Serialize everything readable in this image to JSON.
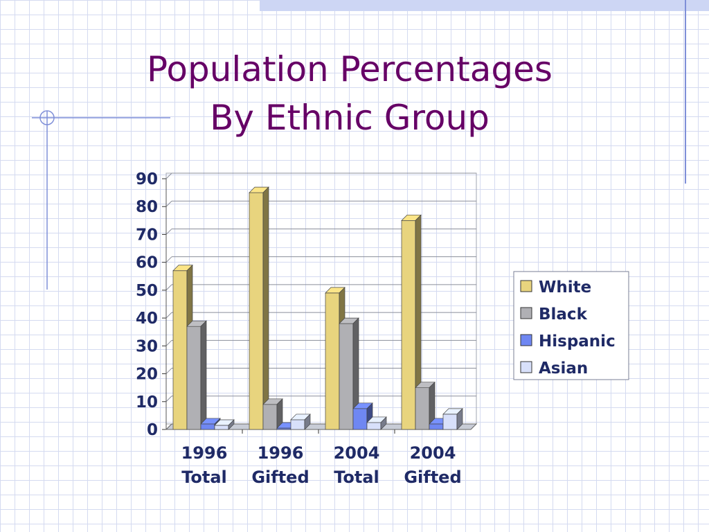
{
  "title": {
    "line1": "Population Percentages",
    "line2": "By Ethnic Group"
  },
  "colors": {
    "background": "#ffffff",
    "grid_pattern": "#d4daf0",
    "decor_line": "#7f8fd8",
    "title": "#660066",
    "axis_text": "#1f2a66"
  },
  "chart_data": {
    "type": "bar",
    "categories": [
      [
        "1996",
        "Total"
      ],
      [
        "1996",
        "Gifted"
      ],
      [
        "2004",
        "Total"
      ],
      [
        "2004",
        "Gifted"
      ]
    ],
    "series": [
      {
        "name": "White",
        "color": "#e8d47e",
        "values": [
          57,
          85,
          49,
          75
        ]
      },
      {
        "name": "Black",
        "color": "#b0b0b4",
        "values": [
          37,
          9,
          38,
          15
        ]
      },
      {
        "name": "Hispanic",
        "color": "#6f87f2",
        "values": [
          2,
          0.5,
          7.5,
          2
        ]
      },
      {
        "name": "Asian",
        "color": "#d8e0fa",
        "values": [
          1.5,
          3.5,
          2.5,
          5.5
        ]
      }
    ],
    "ylim": [
      0,
      90
    ],
    "yticks": [
      0,
      10,
      20,
      30,
      40,
      50,
      60,
      70,
      80,
      90
    ],
    "grid": true,
    "legend": "right",
    "style": "3d-clustered-column"
  }
}
